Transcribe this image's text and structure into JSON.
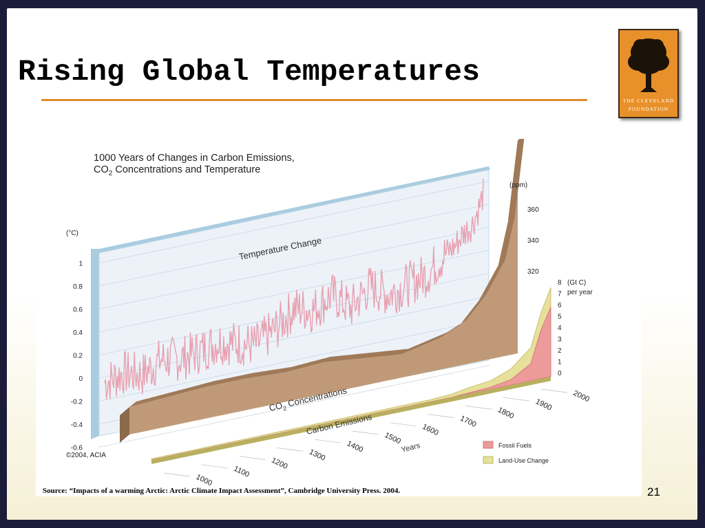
{
  "slide": {
    "title": "Rising Global Temperatures",
    "source": "Source: “Impacts of a warming Arctic: Arctic Climate Impact Assessment”, Cambridge University Press. 2004.",
    "page_number": "21",
    "logo": {
      "line1": "THE CLEVELAND",
      "line2": "FOUNDATION",
      "icon": "oak-tree-icon"
    },
    "colors": {
      "frame": "#1a1c3a",
      "rule": "#e08a2c",
      "logo_bg": "#e8902a"
    }
  },
  "chart_data": {
    "type": "area",
    "title_line1": "1000 Years of Changes in Carbon Emissions,",
    "title_line2_pre": "CO",
    "title_line2_sub": "2",
    "title_line2_post": " Concentrations and Temperature",
    "credit": "©2004, ACIA",
    "x_tick_labels": [
      "1000",
      "1100",
      "1200",
      "1300",
      "1400",
      "1500",
      "1600",
      "1700",
      "1800",
      "1900",
      "2000"
    ],
    "x_label": "Years",
    "temperature": {
      "panel_label": "Temperature Change",
      "unit": "(°C)",
      "ticks": [
        "1",
        "0.8",
        "0.6",
        "0.4",
        "0.2",
        "0",
        "-0.2",
        "-0.4",
        "-0.6"
      ],
      "ylim": [
        -0.6,
        1.0
      ],
      "years": [
        1000,
        1050,
        1100,
        1150,
        1200,
        1250,
        1300,
        1350,
        1400,
        1450,
        1500,
        1550,
        1600,
        1650,
        1700,
        1750,
        1800,
        1850,
        1900,
        1925,
        1950,
        1970,
        1990,
        2000
      ],
      "values": [
        -0.05,
        0.0,
        -0.05,
        0.05,
        0.02,
        0.05,
        0.1,
        0.05,
        0.0,
        0.1,
        0.25,
        0.2,
        0.3,
        0.15,
        0.3,
        0.2,
        0.25,
        0.3,
        0.45,
        0.5,
        0.6,
        0.65,
        0.8,
        0.9
      ]
    },
    "co2": {
      "panel_label_pre": "CO",
      "panel_label_sub": "2",
      "panel_label_post": " Concentrations",
      "unit": "(ppm)",
      "ticks": [
        "360",
        "340",
        "320"
      ],
      "years": [
        1000,
        1100,
        1200,
        1300,
        1400,
        1500,
        1600,
        1700,
        1800,
        1850,
        1900,
        1950,
        1975,
        2000
      ],
      "values": [
        280,
        281,
        282,
        282,
        281,
        282,
        280,
        278,
        282,
        286,
        296,
        311,
        331,
        369
      ]
    },
    "emissions": {
      "panel_label": "Carbon Emissions",
      "unit": "(Gt C)",
      "unit2": "per year",
      "ticks": [
        "8",
        "7",
        "6",
        "5",
        "4",
        "3",
        "2",
        "1",
        "0"
      ],
      "ylim": [
        0,
        8
      ],
      "years": [
        1000,
        1700,
        1750,
        1800,
        1850,
        1900,
        1950,
        1975,
        2000
      ],
      "series": [
        {
          "name": "Fossil Fuels",
          "color": "#e88a8a",
          "values": [
            0,
            0,
            0,
            0.1,
            0.2,
            0.5,
            1.6,
            4.5,
            6.5
          ]
        },
        {
          "name": "Land-Use Change",
          "color": "#e0dc8c",
          "values": [
            0.1,
            0.2,
            0.3,
            0.5,
            0.6,
            1.0,
            1.5,
            1.6,
            1.8
          ]
        }
      ]
    }
  }
}
